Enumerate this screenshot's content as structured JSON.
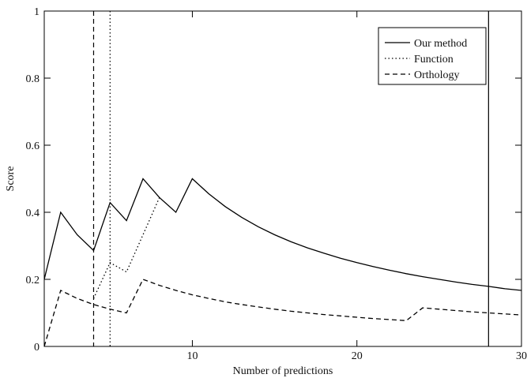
{
  "chart_data": {
    "type": "line",
    "title": "",
    "xlabel": "Number of predictions",
    "ylabel": "Score",
    "xlim": [
      1,
      30
    ],
    "ylim": [
      0,
      1
    ],
    "x_ticks": [
      10,
      20,
      30
    ],
    "y_ticks": [
      0,
      0.2,
      0.4,
      0.6,
      0.8,
      1
    ],
    "y_tick_labels": [
      "0",
      "0.2",
      "0.4",
      "0.6",
      "0.8",
      "1"
    ],
    "grid": false,
    "legend_position": "top-right",
    "series": [
      {
        "name": "Our method",
        "style": "solid",
        "x": [
          1,
          2,
          3,
          4,
          5,
          6,
          7,
          8,
          9,
          10,
          11,
          12,
          13,
          14,
          15,
          16,
          17,
          18,
          19,
          20,
          21,
          22,
          23,
          24,
          25,
          26,
          27,
          28,
          29,
          30
        ],
        "y": [
          0.2,
          0.4,
          0.333,
          0.286,
          0.429,
          0.375,
          0.5,
          0.444,
          0.4,
          0.5,
          0.455,
          0.417,
          0.385,
          0.357,
          0.333,
          0.312,
          0.294,
          0.278,
          0.263,
          0.25,
          0.238,
          0.227,
          0.217,
          0.208,
          0.2,
          0.192,
          0.185,
          0.179,
          0.172,
          0.167
        ]
      },
      {
        "name": "Function",
        "style": "dotted",
        "x": [
          4,
          5,
          6,
          7,
          8
        ],
        "y": [
          0.143,
          0.25,
          0.222,
          0.333,
          0.444
        ]
      },
      {
        "name": "Orthology",
        "style": "dashed",
        "x": [
          1,
          2,
          3,
          4,
          5,
          6,
          7,
          8,
          9,
          10,
          11,
          12,
          13,
          14,
          15,
          16,
          17,
          18,
          19,
          20,
          21,
          22,
          23,
          24,
          25,
          26,
          27,
          28,
          29,
          30
        ],
        "y": [
          0,
          0.167,
          0.143,
          0.125,
          0.111,
          0.1,
          0.2,
          0.182,
          0.167,
          0.154,
          0.143,
          0.133,
          0.125,
          0.118,
          0.111,
          0.105,
          0.1,
          0.095,
          0.091,
          0.087,
          0.083,
          0.08,
          0.077,
          0.115,
          0.111,
          0.107,
          0.103,
          0.1,
          0.097,
          0.094
        ]
      }
    ],
    "vertical_lines": [
      {
        "x": 4,
        "style": "dashed"
      },
      {
        "x": 5,
        "style": "dotted"
      },
      {
        "x": 28,
        "style": "solid"
      }
    ]
  }
}
